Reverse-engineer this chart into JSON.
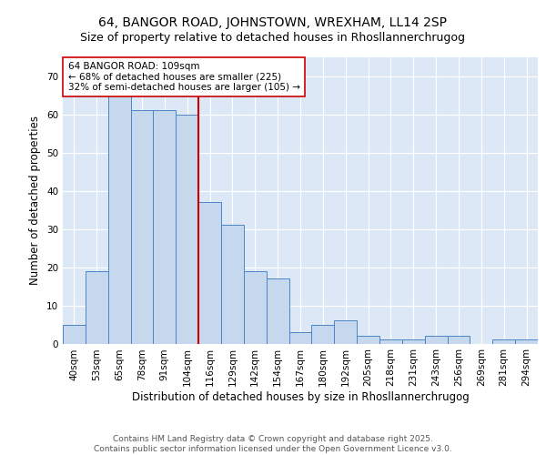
{
  "title": "64, BANGOR ROAD, JOHNSTOWN, WREXHAM, LL14 2SP",
  "subtitle": "Size of property relative to detached houses in Rhosllannerchrugog",
  "xlabel": "Distribution of detached houses by size in Rhosllannerchrugog",
  "ylabel": "Number of detached properties",
  "categories": [
    "40sqm",
    "53sqm",
    "65sqm",
    "78sqm",
    "91sqm",
    "104sqm",
    "116sqm",
    "129sqm",
    "142sqm",
    "154sqm",
    "167sqm",
    "180sqm",
    "192sqm",
    "205sqm",
    "218sqm",
    "231sqm",
    "243sqm",
    "256sqm",
    "269sqm",
    "281sqm",
    "294sqm"
  ],
  "values": [
    5,
    19,
    65,
    61,
    61,
    60,
    37,
    31,
    19,
    17,
    3,
    5,
    6,
    2,
    1,
    1,
    2,
    2,
    0,
    1,
    1
  ],
  "bar_color": "#c5d8ed",
  "bar_edge_color": "#4a86c8",
  "background_color": "#dce8f5",
  "grid_color": "#ffffff",
  "vline_x": 6.0,
  "vline_color": "#cc0000",
  "annotation_text": "64 BANGOR ROAD: 109sqm\n← 68% of detached houses are smaller (225)\n32% of semi-detached houses are larger (105) →",
  "annotation_box_color": "#ffffff",
  "annotation_box_edge": "#cc0000",
  "footer": "Contains HM Land Registry data © Crown copyright and database right 2025.\nContains public sector information licensed under the Open Government Licence v3.0.",
  "ylim": [
    0,
    75
  ],
  "yticks": [
    0,
    10,
    20,
    30,
    40,
    50,
    60,
    70
  ],
  "title_fontsize": 10,
  "subtitle_fontsize": 9,
  "axis_label_fontsize": 8.5,
  "tick_fontsize": 7.5,
  "footer_fontsize": 6.5,
  "annotation_fontsize": 7.5
}
